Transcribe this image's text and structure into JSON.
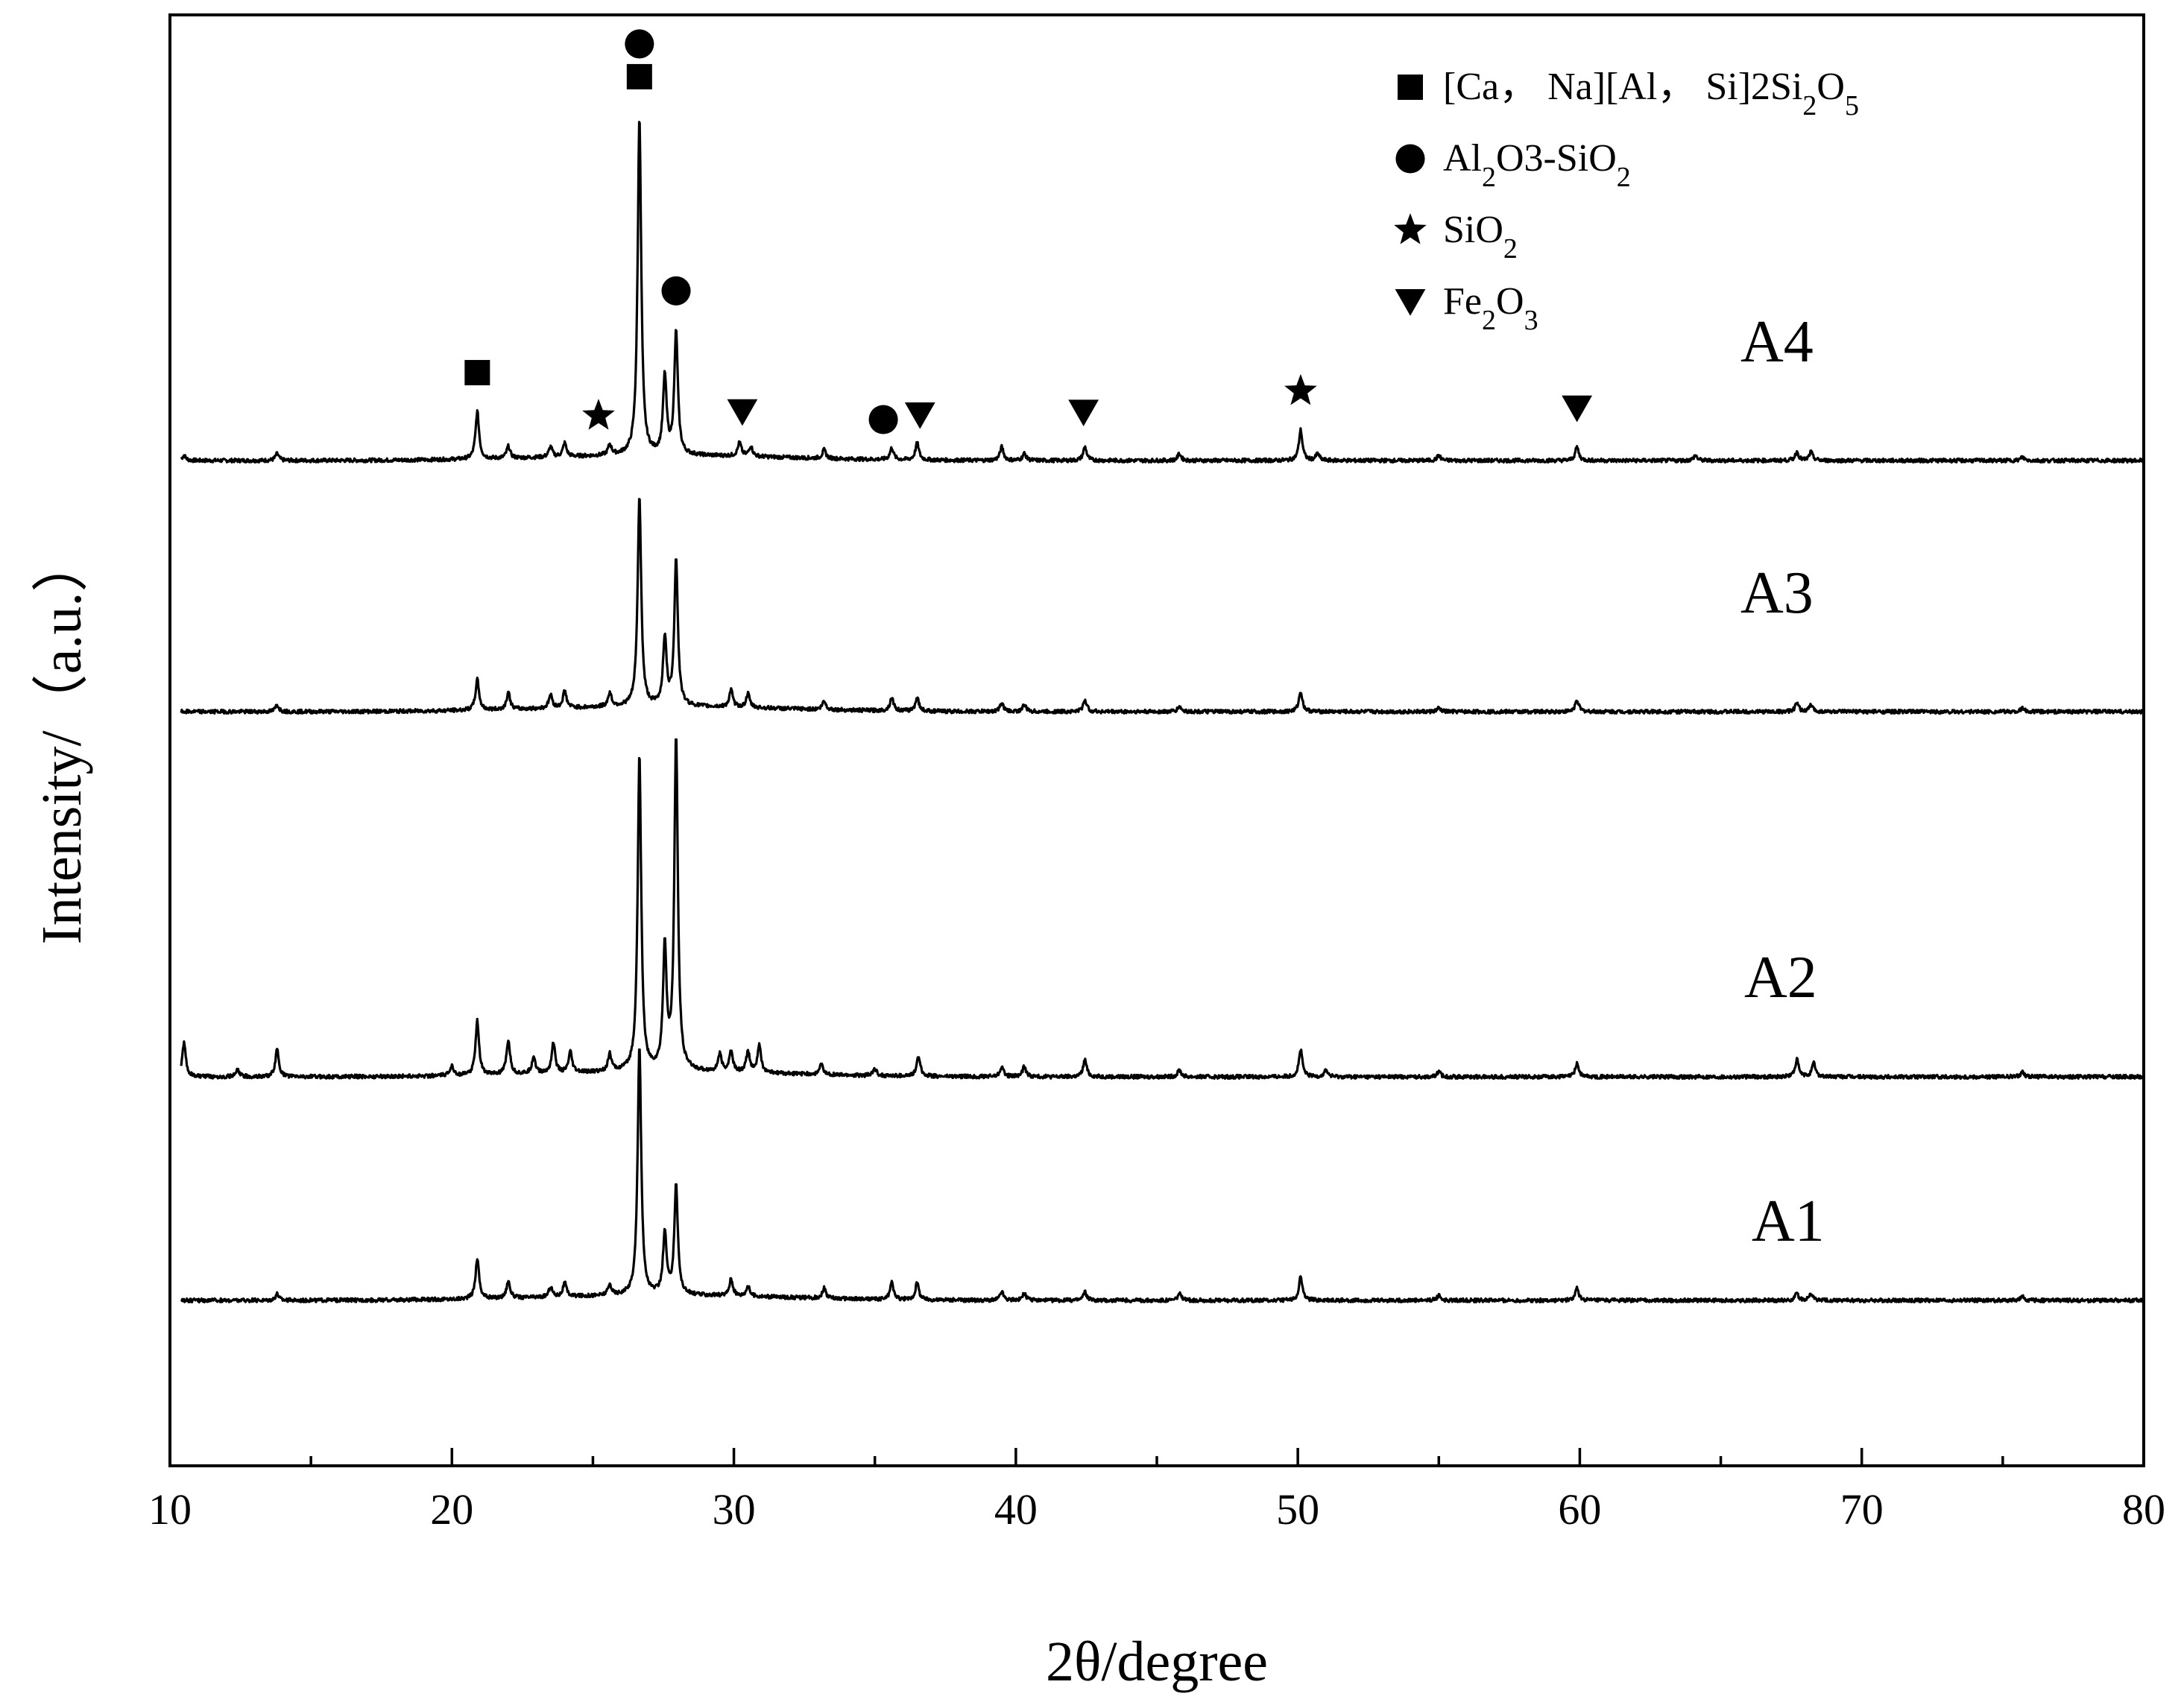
{
  "chart_data": {
    "type": "line",
    "title": "",
    "xlabel": "2θ/degree",
    "ylabel": "Intensity/（a.u.）",
    "xlim": [
      10,
      80
    ],
    "x_ticks": [
      10,
      20,
      30,
      40,
      50,
      60,
      70,
      80
    ],
    "x_tick_labels": [
      "10",
      "20",
      "30",
      "40",
      "50",
      "60",
      "70",
      "80"
    ],
    "y_ticks_shown": false,
    "grid": false,
    "legend_placement": "top-right",
    "legend": [
      {
        "marker": "square",
        "parts": [
          {
            "t": "[Ca，  Na][Al，  Si]2Si"
          },
          {
            "t": "2",
            "sub": true
          },
          {
            "t": "O"
          },
          {
            "t": "5",
            "sub": true
          }
        ]
      },
      {
        "marker": "circle",
        "parts": [
          {
            "t": "Al"
          },
          {
            "t": "2",
            "sub": true
          },
          {
            "t": "O3-SiO"
          },
          {
            "t": "2",
            "sub": true
          }
        ]
      },
      {
        "marker": "star",
        "parts": [
          {
            "t": "SiO"
          },
          {
            "t": "2",
            "sub": true
          }
        ]
      },
      {
        "marker": "triangle-down",
        "parts": [
          {
            "t": "Fe"
          },
          {
            "t": "2",
            "sub": true
          },
          {
            "t": "O"
          },
          {
            "t": "3",
            "sub": true
          }
        ]
      }
    ],
    "phase_markers": [
      {
        "x": 20.9,
        "marker": "square"
      },
      {
        "x": 26.65,
        "marker": "square"
      },
      {
        "x": 26.65,
        "marker": "circle"
      },
      {
        "x": 27.95,
        "marker": "circle"
      },
      {
        "x": 35.3,
        "marker": "circle"
      },
      {
        "x": 25.2,
        "marker": "star"
      },
      {
        "x": 50.1,
        "marker": "star"
      },
      {
        "x": 30.3,
        "marker": "triangle-down"
      },
      {
        "x": 36.6,
        "marker": "triangle-down"
      },
      {
        "x": 42.4,
        "marker": "triangle-down"
      },
      {
        "x": 59.9,
        "marker": "triangle-down"
      }
    ],
    "series": [
      {
        "name": "A4",
        "baseline": 3,
        "peaks": [
          [
            10.5,
            1.5
          ],
          [
            13.8,
            2
          ],
          [
            20.9,
            14
          ],
          [
            22.0,
            3.5
          ],
          [
            23.5,
            3
          ],
          [
            24.0,
            4
          ],
          [
            25.6,
            3
          ],
          [
            26.65,
            100
          ],
          [
            27.55,
            23
          ],
          [
            27.95,
            36
          ],
          [
            30.2,
            4
          ],
          [
            30.6,
            3
          ],
          [
            33.2,
            2.5
          ],
          [
            35.6,
            3.5
          ],
          [
            36.5,
            5
          ],
          [
            39.5,
            4
          ],
          [
            40.3,
            2
          ],
          [
            42.45,
            4
          ],
          [
            45.8,
            2
          ],
          [
            50.1,
            9
          ],
          [
            50.7,
            2
          ],
          [
            55,
            1.5
          ],
          [
            59.9,
            4
          ],
          [
            64.1,
            1.5
          ],
          [
            67.7,
            2.5
          ],
          [
            68.2,
            2.5
          ],
          [
            75.7,
            1
          ]
        ]
      },
      {
        "name": "A3",
        "baseline": 3,
        "peaks": [
          [
            13.8,
            2
          ],
          [
            20.9,
            9
          ],
          [
            22.0,
            5
          ],
          [
            23.5,
            4
          ],
          [
            24.0,
            5
          ],
          [
            25.6,
            4
          ],
          [
            26.65,
            62
          ],
          [
            27.55,
            20
          ],
          [
            27.95,
            43
          ],
          [
            29.9,
            5
          ],
          [
            30.5,
            4
          ],
          [
            33.2,
            2.5
          ],
          [
            35.6,
            4
          ],
          [
            36.5,
            4
          ],
          [
            39.5,
            2.5
          ],
          [
            40.3,
            2
          ],
          [
            42.45,
            3.5
          ],
          [
            45.8,
            1.5
          ],
          [
            50.1,
            6
          ],
          [
            55,
            1
          ],
          [
            59.9,
            3.5
          ],
          [
            67.7,
            2.5
          ],
          [
            68.2,
            2
          ],
          [
            75.7,
            1
          ]
        ]
      },
      {
        "name": "A2",
        "baseline": 3,
        "peaks": [
          [
            10.5,
            10
          ],
          [
            12.4,
            2
          ],
          [
            13.8,
            8
          ],
          [
            20.0,
            3
          ],
          [
            20.9,
            16
          ],
          [
            22.0,
            10
          ],
          [
            22.9,
            5
          ],
          [
            23.6,
            9
          ],
          [
            24.2,
            6
          ],
          [
            25.6,
            5
          ],
          [
            26.65,
            93
          ],
          [
            27.55,
            36
          ],
          [
            27.95,
            98
          ],
          [
            29.5,
            5
          ],
          [
            29.9,
            6
          ],
          [
            30.5,
            6
          ],
          [
            30.9,
            8
          ],
          [
            33.1,
            3
          ],
          [
            35.0,
            2
          ],
          [
            36.55,
            6
          ],
          [
            39.5,
            3
          ],
          [
            40.3,
            3
          ],
          [
            42.45,
            5
          ],
          [
            45.8,
            2
          ],
          [
            50.1,
            8
          ],
          [
            51,
            2
          ],
          [
            55,
            1.5
          ],
          [
            59.9,
            4
          ],
          [
            67.7,
            5
          ],
          [
            68.3,
            4
          ],
          [
            75.7,
            1.5
          ]
        ]
      },
      {
        "name": "A1",
        "baseline": 3,
        "peaks": [
          [
            13.8,
            2
          ],
          [
            20.9,
            12
          ],
          [
            22.0,
            5
          ],
          [
            23.5,
            3
          ],
          [
            24.0,
            4
          ],
          [
            25.6,
            3
          ],
          [
            26.65,
            74
          ],
          [
            27.55,
            18
          ],
          [
            27.95,
            32
          ],
          [
            29.9,
            5
          ],
          [
            30.5,
            3
          ],
          [
            33.2,
            3
          ],
          [
            35.6,
            5
          ],
          [
            36.5,
            5
          ],
          [
            39.5,
            2.5
          ],
          [
            40.3,
            2
          ],
          [
            42.45,
            2.5
          ],
          [
            45.8,
            2
          ],
          [
            50.1,
            7
          ],
          [
            55,
            1.5
          ],
          [
            59.9,
            3.5
          ],
          [
            67.7,
            2
          ],
          [
            68.2,
            2
          ],
          [
            75.7,
            1
          ]
        ]
      }
    ]
  }
}
